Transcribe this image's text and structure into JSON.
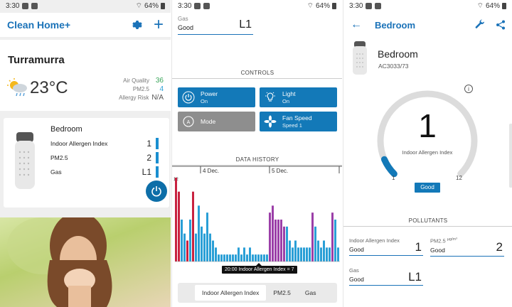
{
  "status": {
    "time": "3:30",
    "battery": "64%"
  },
  "home": {
    "app_title": "Clean Home+",
    "city": "Turramurra",
    "temperature": "23°C",
    "air_quality_label": "Air Quality",
    "air_quality_value": "36",
    "pm25_label": "PM2.5",
    "pm25_value": "4",
    "allergy_label": "Allergy Risk",
    "allergy_value": "N/A",
    "device_card": {
      "title": "Bedroom",
      "rows": [
        {
          "label": "Indoor Allergen Index",
          "value": "1"
        },
        {
          "label": "PM2.5",
          "value": "2"
        },
        {
          "label": "Gas",
          "value": "L1"
        }
      ]
    }
  },
  "controls_screen": {
    "gas_label": "Gas",
    "gas_status": "Good",
    "gas_value": "L1",
    "controls_title": "CONTROLS",
    "controls": [
      {
        "title": "Power",
        "sub": "On"
      },
      {
        "title": "Light",
        "sub": "On"
      },
      {
        "title": "Mode",
        "sub": ""
      },
      {
        "title": "Fan Speed",
        "sub": "Speed 1"
      }
    ],
    "history_title": "DATA HISTORY",
    "tooltip": "20:00 Indoor Allergen Index = 7",
    "tabs": [
      "Indoor Allergen Index",
      "PM2.5",
      "Gas"
    ]
  },
  "chart_data": {
    "type": "bar",
    "title": "",
    "y_max_label": "12",
    "ylim": [
      0,
      12
    ],
    "date_labels": [
      "4 Dec.",
      "5 Dec."
    ],
    "values": [
      12,
      10,
      6,
      4,
      3,
      6,
      10,
      4,
      8,
      5,
      4,
      7,
      4,
      3,
      2,
      1,
      1,
      1,
      1,
      1,
      1,
      1,
      2,
      1,
      2,
      1,
      2,
      1,
      1,
      1,
      1,
      1,
      1,
      7,
      8,
      6,
      6,
      6,
      5,
      5,
      3,
      2,
      3,
      2,
      2,
      2,
      2,
      2,
      7,
      5,
      3,
      2,
      3,
      2,
      2,
      7,
      6,
      2
    ],
    "colors": [
      "#c8213f",
      "#c8213f",
      "#2a9fd6",
      "#2a9fd6",
      "#c8213f",
      "#2a9fd6",
      "#c8213f",
      "#2a9fd6",
      "#2a9fd6",
      "#2a9fd6",
      "#2a9fd6",
      "#2a9fd6",
      "#2a9fd6",
      "#2a9fd6",
      "#2a9fd6",
      "#2a9fd6",
      "#2a9fd6",
      "#2a9fd6",
      "#2a9fd6",
      "#2a9fd6",
      "#2a9fd6",
      "#2a9fd6",
      "#2a9fd6",
      "#2a9fd6",
      "#2a9fd6",
      "#2a9fd6",
      "#2a9fd6",
      "#2a9fd6",
      "#2a9fd6",
      "#2a9fd6",
      "#2a9fd6",
      "#2a9fd6",
      "#2a9fd6",
      "#9b3fa8",
      "#9b3fa8",
      "#9b3fa8",
      "#9b3fa8",
      "#9b3fa8",
      "#9b3fa8",
      "#2a9fd6",
      "#2a9fd6",
      "#2a9fd6",
      "#2a9fd6",
      "#2a9fd6",
      "#2a9fd6",
      "#2a9fd6",
      "#2a9fd6",
      "#2a9fd6",
      "#9b3fa8",
      "#2a9fd6",
      "#2a9fd6",
      "#2a9fd6",
      "#2a9fd6",
      "#2a9fd6",
      "#2a9fd6",
      "#9b3fa8",
      "#2a9fd6",
      "#2a9fd6"
    ]
  },
  "detail": {
    "title": "Bedroom",
    "device_name": "Bedroom",
    "model": "AC3033/73",
    "info": "i",
    "gauge_value": "1",
    "gauge_label": "Indoor Allergen Index",
    "gauge_min": "1",
    "gauge_max": "12",
    "gauge_fraction": 0.08,
    "status": "Good",
    "pollutants_title": "POLLUTANTS",
    "pollutants": [
      {
        "label": "Indoor Allergen Index",
        "status": "Good",
        "value": "1"
      },
      {
        "label": "PM2.5",
        "unit": "µg/m³",
        "status": "Good",
        "value": "2"
      },
      {
        "label": "Gas",
        "status": "Good",
        "value": "L1"
      }
    ]
  },
  "colors": {
    "brand": "#1a72b8",
    "accent": "#2a9fd6",
    "alert": "#c8213f",
    "purple": "#9b3fa8",
    "green": "#3aa55a"
  }
}
